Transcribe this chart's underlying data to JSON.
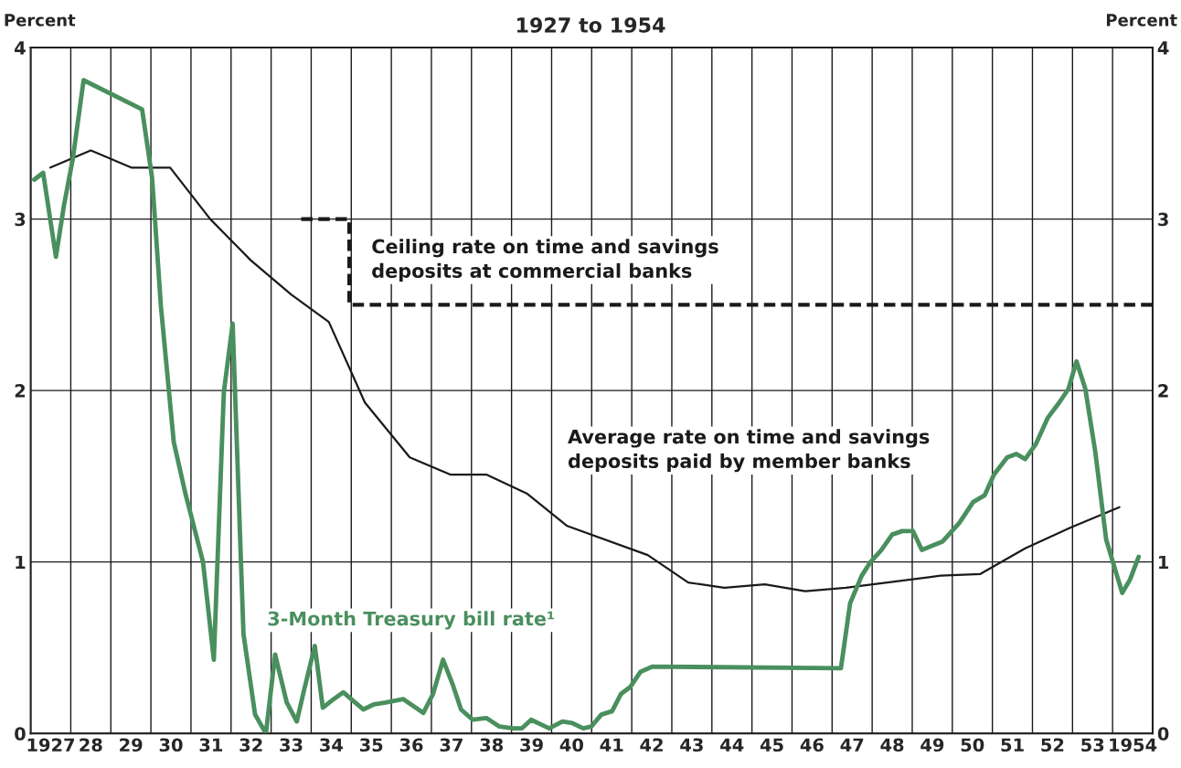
{
  "chart_data": {
    "type": "line",
    "title": "1927 to 1954",
    "ylabel": "Percent",
    "y2label": "Percent",
    "xlim": [
      1926.5,
      1954.5
    ],
    "ylim": [
      0,
      4
    ],
    "yticks": [
      0,
      1,
      2,
      3,
      4
    ],
    "y2lim": [
      0,
      4
    ],
    "y2ticks": [
      0,
      1,
      2,
      3,
      4
    ],
    "xticks": [
      1927,
      {
        "value": 1928,
        "label": "28"
      },
      {
        "value": 1929,
        "label": "29"
      },
      {
        "value": 1930,
        "label": "30"
      },
      {
        "value": 1931,
        "label": "31"
      },
      {
        "value": 1932,
        "label": "32"
      },
      {
        "value": 1933,
        "label": "33"
      },
      {
        "value": 1934,
        "label": "34"
      },
      {
        "value": 1935,
        "label": "35"
      },
      {
        "value": 1936,
        "label": "36"
      },
      {
        "value": 1937,
        "label": "37"
      },
      {
        "value": 1938,
        "label": "38"
      },
      {
        "value": 1939,
        "label": "39"
      },
      {
        "value": 1940,
        "label": "40"
      },
      {
        "value": 1941,
        "label": "41"
      },
      {
        "value": 1942,
        "label": "42"
      },
      {
        "value": 1943,
        "label": "43"
      },
      {
        "value": 1944,
        "label": "44"
      },
      {
        "value": 1945,
        "label": "45"
      },
      {
        "value": 1946,
        "label": "46"
      },
      {
        "value": 1947,
        "label": "47"
      },
      {
        "value": 1948,
        "label": "48"
      },
      {
        "value": 1949,
        "label": "49"
      },
      {
        "value": 1950,
        "label": "50"
      },
      {
        "value": 1951,
        "label": "51"
      },
      {
        "value": 1952,
        "label": "52"
      },
      {
        "value": 1953,
        "label": "53"
      },
      1954,
      {
        "value": 1927.5,
        "label": null
      },
      {
        "value": 1928.5,
        "label": null
      },
      {
        "value": 1929.5,
        "label": null
      },
      {
        "value": 1930.5,
        "label": null
      },
      {
        "value": 1931.5,
        "label": null
      },
      {
        "value": 1932.5,
        "label": null
      },
      {
        "value": 1933.5,
        "label": null
      },
      {
        "value": 1934.5,
        "label": null
      },
      {
        "value": 1935.5,
        "label": null
      },
      {
        "value": 1936.5,
        "label": null
      },
      {
        "value": 1937.5,
        "label": null
      },
      {
        "value": 1938.5,
        "label": null
      },
      {
        "value": 1939.5,
        "label": null
      },
      {
        "value": 1940.5,
        "label": null
      },
      {
        "value": 1941.5,
        "label": null
      },
      {
        "value": 1942.5,
        "label": null
      },
      {
        "value": 1943.5,
        "label": null
      },
      {
        "value": 1944.5,
        "label": null
      },
      {
        "value": 1945.5,
        "label": null
      },
      {
        "value": 1946.5,
        "label": null
      },
      {
        "value": 1947.5,
        "label": null
      },
      {
        "value": 1948.5,
        "label": null
      },
      {
        "value": 1949.5,
        "label": null
      },
      {
        "value": 1950.5,
        "label": null
      },
      {
        "value": 1951.5,
        "label": null
      },
      {
        "value": 1952.5,
        "label": null
      },
      {
        "value": 1953.5,
        "label": null
      }
    ],
    "grid": true,
    "series": [
      {
        "name": "Ceiling rate on time and savings deposits at commercial banks",
        "color": "#1a1a1a",
        "line_style": "dashed",
        "x": [
          1933.25,
          1934.45,
          1934.45,
          1954.5
        ],
        "values": [
          3,
          3,
          2.5,
          2.5
        ]
      },
      {
        "name": "Average rate on time and savings deposits paid by member banks",
        "color": "#1a1a1a",
        "x": [
          1926.99,
          1928.0,
          1929.01,
          1929.98,
          1930.98,
          1931.99,
          1933.0,
          1933.94,
          1934.84,
          1935.96,
          1936.97,
          1937.87,
          1938.88,
          1939.89,
          1941.9,
          1942.91,
          1943.81,
          1944.82,
          1945.83,
          1946.84,
          1949.2,
          1950.2,
          1951.32,
          1952.44,
          1953.67
        ],
        "values": [
          3.3,
          3.4,
          3.3,
          3.3,
          3.0,
          2.76,
          2.56,
          2.4,
          1.93,
          1.61,
          1.51,
          1.51,
          1.4,
          1.21,
          1.04,
          0.88,
          0.85,
          0.87,
          0.83,
          0.85,
          0.92,
          0.93,
          1.08,
          1.2,
          1.32
        ]
      },
      {
        "name": "3-Month Treasury bill rate¹",
        "color": "#4a8f5e",
        "x": [
          1926.59,
          1926.81,
          1927.13,
          1927.33,
          1927.55,
          1927.82,
          1929.28,
          1929.53,
          1929.75,
          1930.07,
          1930.36,
          1930.8,
          1931.07,
          1931.32,
          1931.54,
          1931.81,
          1932.1,
          1932.37,
          1932.6,
          1932.89,
          1933.14,
          1933.32,
          1933.59,
          1933.79,
          1934.06,
          1934.3,
          1934.55,
          1934.8,
          1935.07,
          1935.36,
          1935.8,
          1936.3,
          1936.54,
          1936.79,
          1937.04,
          1937.24,
          1937.53,
          1937.87,
          1938.2,
          1938.54,
          1938.76,
          1938.99,
          1939.44,
          1939.77,
          1940.02,
          1940.29,
          1940.49,
          1940.74,
          1941.01,
          1941.23,
          1941.46,
          1941.72,
          1942.02,
          1946.72,
          1946.95,
          1947.24,
          1947.46,
          1947.73,
          1948.0,
          1948.25,
          1948.52,
          1948.74,
          1949.26,
          1949.68,
          1950.02,
          1950.31,
          1950.54,
          1950.87,
          1951.1,
          1951.32,
          1951.59,
          1951.88,
          1952.17,
          1952.4,
          1952.6,
          1952.82,
          1953.07,
          1953.34,
          1953.52,
          1953.74,
          1953.94,
          1954.15
        ],
        "values": [
          3.23,
          3.27,
          2.78,
          3.08,
          3.35,
          3.81,
          3.64,
          3.24,
          2.49,
          1.7,
          1.4,
          1.0,
          0.43,
          1.99,
          2.39,
          0.58,
          0.11,
          0.0,
          0.46,
          0.18,
          0.07,
          0.25,
          0.51,
          0.15,
          0.2,
          0.24,
          0.19,
          0.14,
          0.17,
          0.18,
          0.2,
          0.12,
          0.23,
          0.43,
          0.28,
          0.14,
          0.08,
          0.09,
          0.04,
          0.03,
          0.03,
          0.08,
          0.03,
          0.07,
          0.06,
          0.03,
          0.04,
          0.11,
          0.13,
          0.23,
          0.27,
          0.36,
          0.39,
          0.38,
          0.76,
          0.92,
          1.0,
          1.07,
          1.16,
          1.18,
          1.18,
          1.07,
          1.12,
          1.23,
          1.35,
          1.39,
          1.51,
          1.61,
          1.63,
          1.6,
          1.69,
          1.84,
          1.93,
          2.01,
          2.17,
          2.01,
          1.64,
          1.13,
          0.99,
          0.82,
          0.9,
          1.03
        ]
      }
    ]
  }
}
